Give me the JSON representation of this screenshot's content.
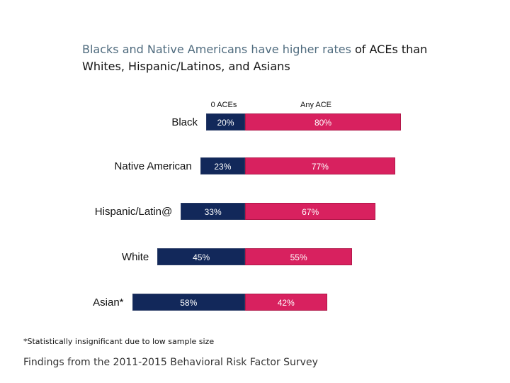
{
  "title": {
    "part1": "Blacks and Native Americans have higher rates",
    "part2": " of ACEs than Whites, Hispanic/Latinos, and Asians"
  },
  "chart_data": {
    "type": "bar",
    "title": "Blacks and Native Americans have higher rates of ACEs than Whites, Hispanic/Latinos, and Asians",
    "categories": [
      "Black",
      "Native American",
      "Hispanic/Latin@",
      "White",
      "Asian*"
    ],
    "series": [
      {
        "name": "0 ACEs",
        "values": [
          20,
          23,
          33,
          45,
          58
        ],
        "labels": [
          "20%",
          "23%",
          "33%",
          "45%",
          "58%"
        ],
        "color": "#12285a"
      },
      {
        "name": "Any ACE",
        "values": [
          80,
          77,
          67,
          55,
          42
        ],
        "labels": [
          "80%",
          "77%",
          "67%",
          "55%",
          "42%"
        ],
        "color": "#d8215f"
      }
    ],
    "stacked": true,
    "orientation": "horizontal",
    "xlim": [
      0,
      100
    ],
    "grid": false
  },
  "footnote": "*Statistically insignificant due to low sample size",
  "source": "Findings from the 2011-2015 Behavioral Risk Factor Survey"
}
